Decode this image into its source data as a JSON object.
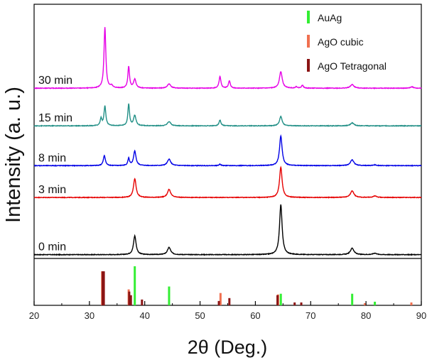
{
  "chart_data": {
    "type": "line",
    "xlabel": "2θ (Deg.)",
    "ylabel": "Intensity (a. u.)",
    "xlim": [
      20,
      90
    ],
    "xticks": [
      20,
      30,
      40,
      50,
      60,
      70,
      80,
      90
    ],
    "series": [
      {
        "name": "0 min",
        "color": "#000000",
        "baseline": 0.0,
        "noise": 0.004,
        "peaks": [
          {
            "x": 38.2,
            "h": 0.26,
            "w": 0.28
          },
          {
            "x": 44.4,
            "h": 0.1,
            "w": 0.35
          },
          {
            "x": 64.6,
            "h": 0.69,
            "w": 0.28
          },
          {
            "x": 77.5,
            "h": 0.09,
            "w": 0.38
          },
          {
            "x": 81.6,
            "h": 0.02,
            "w": 0.4
          }
        ]
      },
      {
        "name": "3 min",
        "color": "#e60000",
        "baseline": 0.79,
        "noise": 0.004,
        "peaks": [
          {
            "x": 38.2,
            "h": 0.26,
            "w": 0.28
          },
          {
            "x": 44.4,
            "h": 0.11,
            "w": 0.35
          },
          {
            "x": 64.6,
            "h": 0.42,
            "w": 0.28
          },
          {
            "x": 77.5,
            "h": 0.09,
            "w": 0.38
          },
          {
            "x": 81.6,
            "h": 0.02,
            "w": 0.4
          }
        ]
      },
      {
        "name": "8 min",
        "color": "#0000e6",
        "baseline": 1.23,
        "noise": 0.004,
        "peaks": [
          {
            "x": 32.7,
            "h": 0.14,
            "w": 0.22
          },
          {
            "x": 37.1,
            "h": 0.1,
            "w": 0.18
          },
          {
            "x": 38.2,
            "h": 0.2,
            "w": 0.26
          },
          {
            "x": 44.4,
            "h": 0.09,
            "w": 0.35
          },
          {
            "x": 53.6,
            "h": 0.02,
            "w": 0.2
          },
          {
            "x": 64.6,
            "h": 0.41,
            "w": 0.28
          },
          {
            "x": 77.5,
            "h": 0.08,
            "w": 0.38
          },
          {
            "x": 81.6,
            "h": 0.01,
            "w": 0.4
          }
        ]
      },
      {
        "name": "15 min",
        "color": "#218f86",
        "baseline": 1.78,
        "noise": 0.004,
        "peaks": [
          {
            "x": 32.1,
            "h": 0.1,
            "w": 0.18
          },
          {
            "x": 32.8,
            "h": 0.27,
            "w": 0.2
          },
          {
            "x": 37.1,
            "h": 0.3,
            "w": 0.18
          },
          {
            "x": 38.2,
            "h": 0.14,
            "w": 0.26
          },
          {
            "x": 44.4,
            "h": 0.06,
            "w": 0.35
          },
          {
            "x": 53.6,
            "h": 0.08,
            "w": 0.2
          },
          {
            "x": 64.6,
            "h": 0.13,
            "w": 0.28
          },
          {
            "x": 77.5,
            "h": 0.04,
            "w": 0.38
          }
        ]
      },
      {
        "name": "30 min",
        "color": "#e600e6",
        "baseline": 2.3,
        "noise": 0.004,
        "peaks": [
          {
            "x": 32.8,
            "h": 0.84,
            "w": 0.2
          },
          {
            "x": 34.0,
            "h": 0.03,
            "w": 0.25
          },
          {
            "x": 37.1,
            "h": 0.3,
            "w": 0.18
          },
          {
            "x": 38.2,
            "h": 0.12,
            "w": 0.26
          },
          {
            "x": 44.4,
            "h": 0.06,
            "w": 0.35
          },
          {
            "x": 53.6,
            "h": 0.16,
            "w": 0.2
          },
          {
            "x": 55.3,
            "h": 0.1,
            "w": 0.2
          },
          {
            "x": 64.6,
            "h": 0.23,
            "w": 0.3
          },
          {
            "x": 67.4,
            "h": 0.02,
            "w": 0.2
          },
          {
            "x": 68.5,
            "h": 0.04,
            "w": 0.2
          },
          {
            "x": 77.5,
            "h": 0.05,
            "w": 0.38
          },
          {
            "x": 88.3,
            "h": 0.02,
            "w": 0.3
          }
        ]
      }
    ],
    "ylim": [
      -0.7,
      3.46
    ],
    "reference_lines": {
      "baseline_y": -0.7,
      "groups": [
        {
          "name": "AuAg",
          "color": "#33ee33",
          "x": [
            38.2,
            44.4,
            64.6,
            77.5,
            81.6
          ],
          "h": [
            0.54,
            0.26,
            0.16,
            0.16,
            0.05
          ]
        },
        {
          "name": "AgO cubic",
          "color": "#f07050",
          "x": [
            32.3,
            37.1,
            53.7,
            64.1,
            79.8,
            88.2
          ],
          "h": [
            0.47,
            0.22,
            0.17,
            0.15,
            0.03,
            0.04
          ]
        },
        {
          "name": "AgO Tetragonal",
          "color": "#8b1414",
          "x": [
            32.4,
            32.6,
            37.2,
            37.5,
            39.5,
            53.4,
            55.3,
            64.0,
            67.1,
            68.3
          ],
          "h": [
            0.47,
            0.47,
            0.19,
            0.14,
            0.08,
            0.06,
            0.1,
            0.14,
            0.04,
            0.04
          ]
        }
      ]
    },
    "legend": "top-right"
  }
}
